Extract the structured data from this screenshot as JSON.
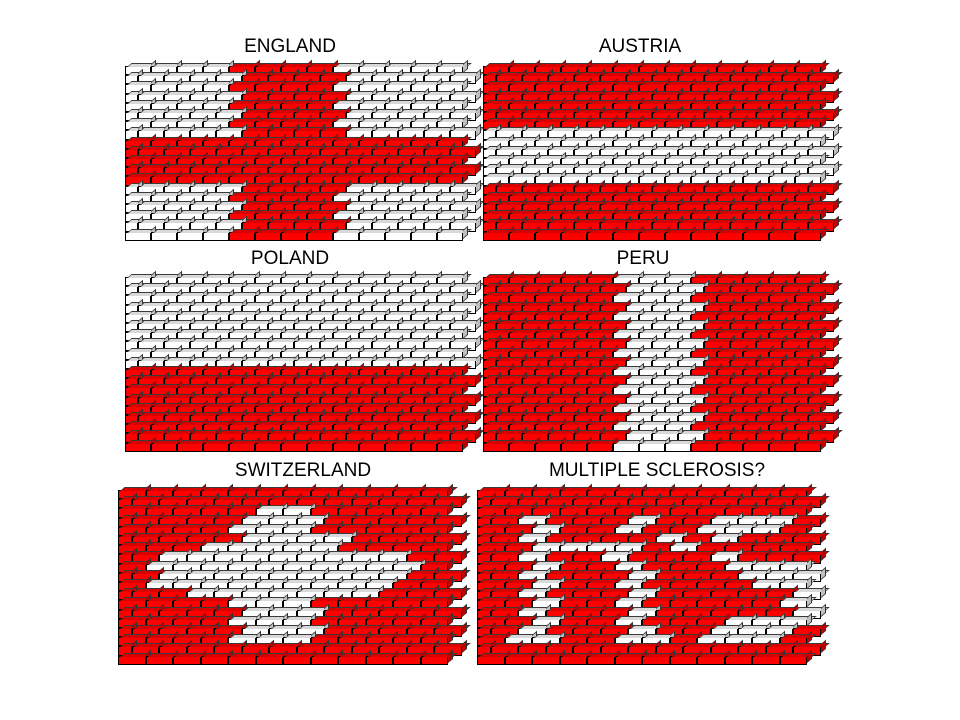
{
  "colors": {
    "R": "#ff0000",
    "W": "#ffffff"
  },
  "walls": [
    {
      "title": "ENGLAND",
      "rows": [
        "WWWWRRRRWWWWW",
        "WWWWRRRRWWWWW",
        "WWWWRRRRWWWWW",
        "WWWWRRRRWWWWW",
        "WWWWRRRRWWWWW",
        "WWWWRRRRWWWWW",
        "WWWWRRRRWWWWW",
        "WWWWRRRRWWWWW",
        "RRRRRRRRRRRRR",
        "RRRRRRRRRRRRR",
        "RRRRRRRRRRRRR",
        "RRRRRRRRRRRRR",
        "RRRRRRRRRRRRR",
        "WWWWRRRRWWWWW",
        "WWWWRRRRWWWWW",
        "WWWWRRRRWWWWW",
        "WWWWRRRRWWWWW",
        "WWWWRRRRWWWWW",
        "WWWWRRRRWWWWW"
      ]
    },
    {
      "title": "AUSTRIA",
      "rows": [
        "RRRRRRRRRRRRR",
        "RRRRRRRRRRRRR",
        "RRRRRRRRRRRRR",
        "RRRRRRRRRRRRR",
        "RRRRRRRRRRRRR",
        "RRRRRRRRRRRRR",
        "RRRRRRRRRRRRR",
        "WWWWWWWWWWWWW",
        "WWWWWWWWWWWWW",
        "WWWWWWWWWWWWW",
        "WWWWWWWWWWWWW",
        "WWWWWWWWWWWWW",
        "WWWWWWWWWWWWW",
        "RRRRRRRRRRRRR",
        "RRRRRRRRRRRRR",
        "RRRRRRRRRRRRR",
        "RRRRRRRRRRRRR",
        "RRRRRRRRRRRRR",
        "RRRRRRRRRRRRR"
      ]
    },
    {
      "title": "POLAND",
      "rows": [
        "WWWWWWWWWWWWW",
        "WWWWWWWWWWWWW",
        "WWWWWWWWWWWWW",
        "WWWWWWWWWWWWW",
        "WWWWWWWWWWWWW",
        "WWWWWWWWWWWWW",
        "WWWWWWWWWWWWW",
        "WWWWWWWWWWWWW",
        "WWWWWWWWWWWWW",
        "WWWWWWWWWWWWW",
        "RRRRRRRRRRRRR",
        "RRRRRRRRRRRRR",
        "RRRRRRRRRRRRR",
        "RRRRRRRRRRRRR",
        "RRRRRRRRRRRRR",
        "RRRRRRRRRRRRR",
        "RRRRRRRRRRRRR",
        "RRRRRRRRRRRRR",
        "RRRRRRRRRRRRR"
      ]
    },
    {
      "title": "PERU",
      "rows": [
        "RRRRRWWWRRRRR",
        "RRRRRWWWRRRRR",
        "RRRRRWWWRRRRR",
        "RRRRRWWWRRRRR",
        "RRRRRWWWRRRRR",
        "RRRRRWWWRRRRR",
        "RRRRRWWWRRRRR",
        "RRRRRWWWRRRRR",
        "RRRRRWWWRRRRR",
        "RRRRRWWWRRRRR",
        "RRRRRWWWRRRRR",
        "RRRRRWWWRRRRR",
        "RRRRRWWWRRRRR",
        "RRRRRWWWRRRRR",
        "RRRRRWWWRRRRR",
        "RRRRRWWWRRRRR",
        "RRRRRWWWRRRRR",
        "RRRRRWWWRRRRR",
        "RRRRRWWWRRRRR"
      ]
    },
    {
      "title": "SWITZERLAND",
      "rows": [
        "RRRRRRRRRRRR",
        "RRRRRRRRRRRR",
        "RRRRRWWRRRRR",
        "RRRRWWWRRRRR",
        "RRRRWWWRRRRR",
        "RRRRWWWWRRRR",
        "RRRWWWWWRRRR",
        "RWWWWWWWWWRR",
        "RWWWWWWWWWWR",
        "RWWWWWWWWWRR",
        "RWWWWWWWWWRR",
        "RRWWWWWWWRRR",
        "RRRRWWWRRRRR",
        "RRRRWWWRRRRR",
        "RRRRWWWRRRRR",
        "RRRRWWWRRRRR",
        "RRRRWWWRRRRR",
        "RRRRRRRRRRRR",
        "RRRRRRRRRRRR"
      ]
    },
    {
      "title": "MULTIPLE SCLEROSIS?",
      "rows": [
        "RRRRRRRRRRRR",
        "RRRRRRRRRRRR",
        "RRRRRRRRRRRR",
        "RWRRRWRRWWWR",
        "RRWRRWRRWWWR",
        "RWRRRRWRWRRR",
        "RRWWWWRWRRRR",
        "RWRRWRRRWRRR",
        "RRWRRWRRRWWW",
        "RWRRRWRRRWWW",
        "RRWRRWRRRRWW",
        "RWRRRWRRRRRW",
        "RRWRRWRRRRRW",
        "RWRRRWRRRRRW",
        "RRWRRWRRRWWW",
        "RWRRRWRRWWWR",
        "RWWRRWWRWWWR",
        "RRRRRRRRRRRR",
        "RRRRRRRRRRRR"
      ]
    }
  ]
}
